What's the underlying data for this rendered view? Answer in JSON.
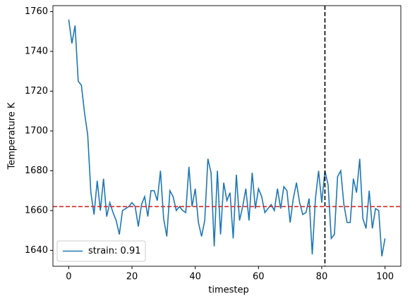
{
  "chart_data": {
    "type": "line",
    "x_label": "timestep",
    "y_label": "Temperature K",
    "x": [
      0,
      1,
      2,
      3,
      4,
      5,
      6,
      7,
      8,
      9,
      10,
      11,
      12,
      13,
      14,
      15,
      16,
      17,
      18,
      19,
      20,
      21,
      22,
      23,
      24,
      25,
      26,
      27,
      28,
      29,
      30,
      31,
      32,
      33,
      34,
      35,
      36,
      37,
      38,
      39,
      40,
      41,
      42,
      43,
      44,
      45,
      46,
      47,
      48,
      49,
      50,
      51,
      52,
      53,
      54,
      55,
      56,
      57,
      58,
      59,
      60,
      61,
      62,
      63,
      64,
      65,
      66,
      67,
      68,
      69,
      70,
      71,
      72,
      73,
      74,
      75,
      76,
      77,
      78,
      79,
      80,
      81,
      82,
      83,
      84,
      85,
      86,
      87,
      88,
      89,
      90,
      91,
      92,
      93,
      94,
      95,
      96,
      97,
      98,
      99,
      100
    ],
    "series": [
      {
        "name": "strain: 0.91",
        "color": "#1f77b4",
        "values": [
          1756,
          1744,
          1753,
          1725,
          1723,
          1709,
          1698,
          1669,
          1658,
          1675,
          1660,
          1676,
          1657,
          1664,
          1659,
          1655,
          1648,
          1660,
          1661,
          1662,
          1664,
          1662,
          1652,
          1663,
          1667,
          1657,
          1670,
          1670,
          1665,
          1680,
          1656,
          1647,
          1670,
          1667,
          1660,
          1662,
          1660,
          1659,
          1682,
          1662,
          1671,
          1654,
          1647,
          1655,
          1686,
          1679,
          1642,
          1680,
          1648,
          1674,
          1665,
          1669,
          1646,
          1678,
          1655,
          1662,
          1671,
          1655,
          1679,
          1661,
          1671,
          1667,
          1659,
          1661,
          1663,
          1660,
          1671,
          1661,
          1672,
          1670,
          1654,
          1666,
          1674,
          1664,
          1658,
          1659,
          1666,
          1638,
          1666,
          1680,
          1664,
          1680,
          1673,
          1646,
          1648,
          1677,
          1680,
          1663,
          1654,
          1654,
          1676,
          1669,
          1686,
          1656,
          1651,
          1670,
          1651,
          1661,
          1660,
          1637,
          1646
        ]
      }
    ],
    "hline": 1662,
    "hline_color": "#d62728",
    "vline": 81,
    "vline_color": "#000000",
    "xlim": [
      -5,
      105
    ],
    "ylim": [
      1632,
      1763
    ],
    "xticks": [
      0,
      20,
      40,
      60,
      80,
      100
    ],
    "yticks": [
      1640,
      1660,
      1680,
      1700,
      1720,
      1740,
      1760
    ],
    "legend": "lower left"
  }
}
